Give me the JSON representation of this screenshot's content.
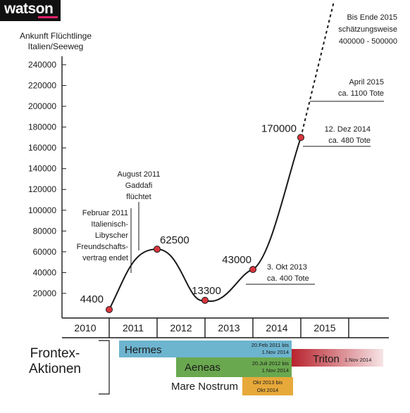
{
  "brand": {
    "name": "watson",
    "accent": "#e0206a"
  },
  "chart_data": {
    "type": "line",
    "title": "",
    "ylabel": "Ankunft Flüchtlinge\nItalien/Seeweg",
    "xlabel": "",
    "ylim": [
      0,
      240000
    ],
    "yticks": [
      20000,
      40000,
      60000,
      80000,
      100000,
      120000,
      140000,
      160000,
      180000,
      200000,
      220000,
      240000
    ],
    "ytick_labels": [
      "20000",
      "40000",
      "60000",
      "80000",
      "100000",
      "120000",
      "140000",
      "160000",
      "180000",
      "200000",
      "220000",
      "240000"
    ],
    "xticks": [
      "2010",
      "2011",
      "2012",
      "2013",
      "2014",
      "2015"
    ],
    "points": [
      {
        "year": 2010,
        "value": 4400,
        "label": "4400"
      },
      {
        "year": 2011,
        "value": 62500,
        "label": "62500"
      },
      {
        "year": 2012,
        "value": 13300,
        "label": "13300"
      },
      {
        "year": 2013,
        "value": 43000,
        "label": "43000"
      },
      {
        "year": 2014,
        "value": 170000,
        "label": "170000"
      }
    ],
    "projection_label": "Bis Ende 2015\nschätzungsweise\n400000 - 500000",
    "annotations": [
      {
        "id": "feb2011",
        "text": "Februar 2011\nItalienisch-\nLibyscher\nFreundschafts-\nvertrag endet"
      },
      {
        "id": "aug2011",
        "text": "August 2011\nGaddafi\nflüchtet"
      },
      {
        "id": "okt2013",
        "text": "3. Okt 2013\nca. 400 Tote"
      },
      {
        "id": "dez2014",
        "text": "12. Dez 2014\nca. 480 Tote"
      },
      {
        "id": "apr2015",
        "text": "April 2015\nca. 1100 Tote"
      }
    ],
    "colors": {
      "line": "#1a1a1a",
      "marker": "#d9363e"
    }
  },
  "operations": {
    "section_label": "Frontex-\nAktionen",
    "bars": [
      {
        "id": "hermes",
        "name": "Hermes",
        "note": "20.Feb 2011 bis\n1.Nov 2014",
        "color": "#6db4cf"
      },
      {
        "id": "triton",
        "name": "Triton",
        "note": "1.Nov 2014",
        "color": "#b8232e"
      },
      {
        "id": "aeneas",
        "name": "Aeneas",
        "note": "20.Juli 2012 bis\n1.Nov 2014",
        "color": "#6aa84f"
      },
      {
        "id": "mare",
        "name": "Mare Nostrum",
        "note": "Okt 2013 bis\nOkt 2014",
        "color": "#e7a93a"
      }
    ]
  }
}
